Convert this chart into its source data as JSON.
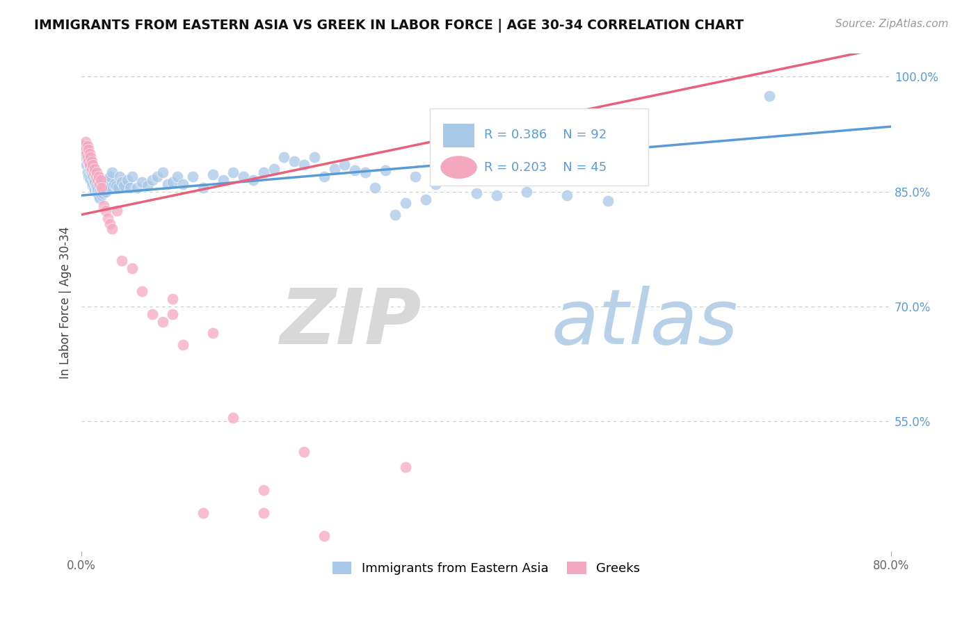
{
  "title": "IMMIGRANTS FROM EASTERN ASIA VS GREEK IN LABOR FORCE | AGE 30-34 CORRELATION CHART",
  "source": "Source: ZipAtlas.com",
  "ylabel": "In Labor Force | Age 30-34",
  "xmin": 0.0,
  "xmax": 0.8,
  "ymin": 0.38,
  "ymax": 1.03,
  "yticks": [
    0.55,
    0.7,
    0.85,
    1.0
  ],
  "ytick_labels": [
    "55.0%",
    "70.0%",
    "85.0%",
    "100.0%"
  ],
  "legend_r_blue": "R = 0.386",
  "legend_n_blue": "N = 92",
  "legend_r_pink": "R = 0.203",
  "legend_n_pink": "N = 45",
  "blue_color": "#a8c8e8",
  "pink_color": "#f4a8c0",
  "blue_line_color": "#5b9bd5",
  "pink_line_color": "#e8607a",
  "blue_trend_x0": 0.0,
  "blue_trend_y0": 0.845,
  "blue_trend_x1": 0.8,
  "blue_trend_y1": 0.935,
  "pink_trend_x0": 0.0,
  "pink_trend_y0": 0.82,
  "pink_trend_x1": 0.8,
  "pink_trend_y1": 1.04,
  "blue_scatter_x": [
    0.002,
    0.003,
    0.004,
    0.005,
    0.005,
    0.006,
    0.006,
    0.007,
    0.007,
    0.008,
    0.008,
    0.009,
    0.009,
    0.01,
    0.01,
    0.011,
    0.011,
    0.012,
    0.012,
    0.013,
    0.013,
    0.014,
    0.015,
    0.015,
    0.016,
    0.016,
    0.017,
    0.018,
    0.018,
    0.019,
    0.02,
    0.021,
    0.022,
    0.023,
    0.024,
    0.025,
    0.026,
    0.027,
    0.028,
    0.029,
    0.03,
    0.032,
    0.034,
    0.036,
    0.038,
    0.04,
    0.042,
    0.045,
    0.048,
    0.05,
    0.055,
    0.06,
    0.065,
    0.07,
    0.075,
    0.08,
    0.085,
    0.09,
    0.095,
    0.1,
    0.11,
    0.12,
    0.13,
    0.14,
    0.15,
    0.16,
    0.17,
    0.18,
    0.19,
    0.2,
    0.21,
    0.22,
    0.23,
    0.24,
    0.25,
    0.26,
    0.27,
    0.28,
    0.29,
    0.3,
    0.31,
    0.32,
    0.33,
    0.34,
    0.35,
    0.37,
    0.39,
    0.41,
    0.44,
    0.48,
    0.52,
    0.68
  ],
  "blue_scatter_y": [
    0.9,
    0.91,
    0.895,
    0.905,
    0.885,
    0.892,
    0.875,
    0.888,
    0.87,
    0.882,
    0.868,
    0.878,
    0.865,
    0.875,
    0.862,
    0.87,
    0.858,
    0.865,
    0.855,
    0.862,
    0.852,
    0.858,
    0.855,
    0.85,
    0.848,
    0.852,
    0.845,
    0.85,
    0.842,
    0.848,
    0.845,
    0.848,
    0.852,
    0.855,
    0.85,
    0.858,
    0.862,
    0.865,
    0.87,
    0.855,
    0.875,
    0.86,
    0.858,
    0.855,
    0.87,
    0.862,
    0.858,
    0.865,
    0.855,
    0.87,
    0.855,
    0.862,
    0.858,
    0.865,
    0.87,
    0.875,
    0.86,
    0.862,
    0.87,
    0.86,
    0.87,
    0.855,
    0.872,
    0.865,
    0.875,
    0.87,
    0.865,
    0.875,
    0.88,
    0.895,
    0.89,
    0.885,
    0.895,
    0.87,
    0.88,
    0.885,
    0.878,
    0.875,
    0.855,
    0.878,
    0.82,
    0.835,
    0.87,
    0.84,
    0.86,
    0.87,
    0.848,
    0.845,
    0.85,
    0.845,
    0.838,
    0.975
  ],
  "pink_scatter_x": [
    0.002,
    0.003,
    0.004,
    0.005,
    0.006,
    0.006,
    0.007,
    0.007,
    0.008,
    0.008,
    0.009,
    0.01,
    0.01,
    0.011,
    0.012,
    0.013,
    0.014,
    0.015,
    0.016,
    0.017,
    0.018,
    0.019,
    0.02,
    0.022,
    0.024,
    0.026,
    0.028,
    0.03,
    0.035,
    0.04,
    0.05,
    0.06,
    0.07,
    0.08,
    0.09,
    0.1,
    0.12,
    0.15,
    0.18,
    0.22,
    0.09,
    0.13,
    0.18,
    0.24,
    0.32
  ],
  "pink_scatter_y": [
    0.91,
    0.905,
    0.915,
    0.9,
    0.91,
    0.895,
    0.905,
    0.89,
    0.9,
    0.885,
    0.895,
    0.89,
    0.88,
    0.885,
    0.875,
    0.88,
    0.87,
    0.875,
    0.865,
    0.87,
    0.86,
    0.865,
    0.855,
    0.832,
    0.825,
    0.815,
    0.808,
    0.802,
    0.825,
    0.76,
    0.75,
    0.72,
    0.69,
    0.68,
    0.69,
    0.65,
    0.43,
    0.555,
    0.46,
    0.51,
    0.71,
    0.665,
    0.43,
    0.4,
    0.49
  ]
}
